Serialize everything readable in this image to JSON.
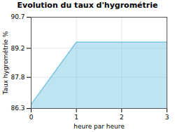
{
  "chart_data": {
    "type": "area",
    "title": "Evolution du taux d'hygrométrie",
    "xlabel": "heure par heure",
    "ylabel": "Taux hygrométrie %",
    "x": [
      0,
      1,
      3
    ],
    "values": [
      86.5,
      89.5,
      89.5
    ],
    "xlim": [
      0,
      3
    ],
    "ylim": [
      86.3,
      90.7
    ],
    "xticks": [
      0,
      1,
      2,
      3
    ],
    "yticks": [
      86.3,
      87.8,
      89.2,
      90.7
    ],
    "color": "#7ec8e3",
    "grid": true
  }
}
